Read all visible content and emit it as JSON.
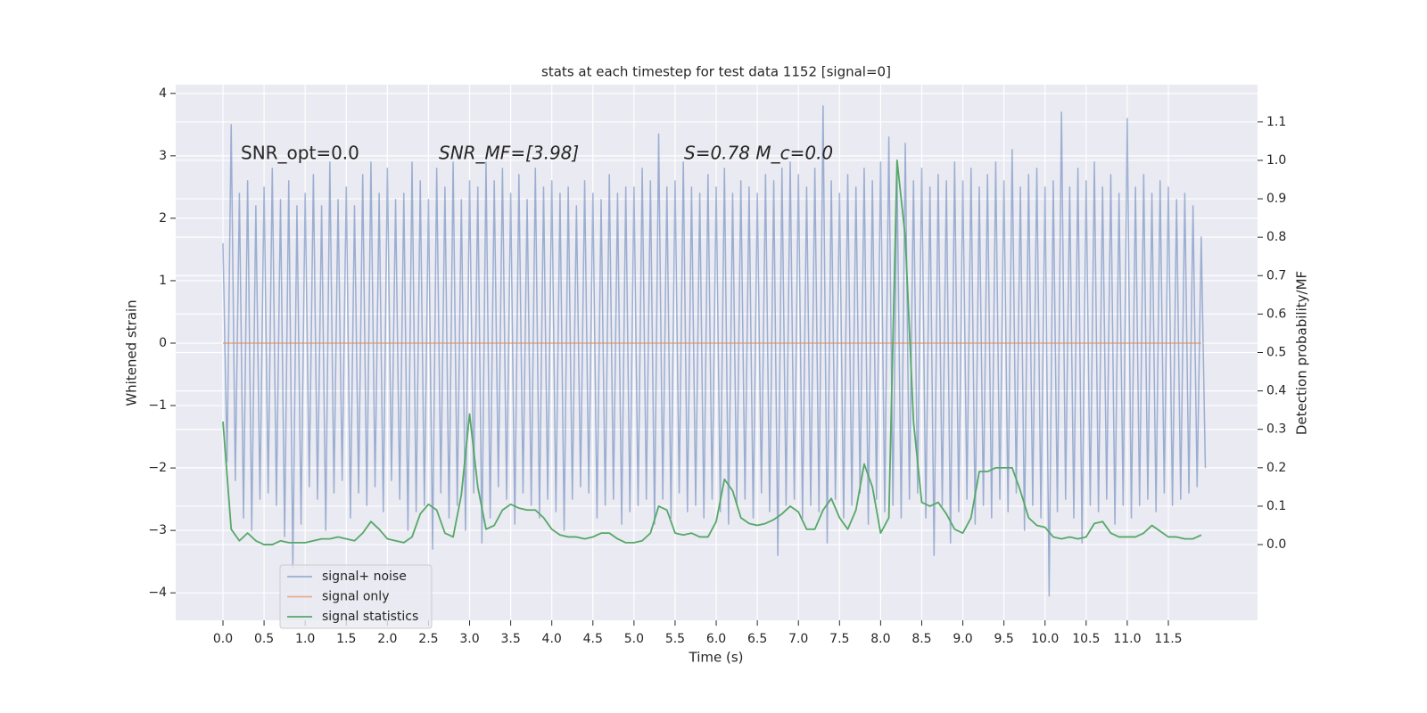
{
  "chart_data": {
    "type": "line",
    "title": "stats at each timestep for test data 1152 [signal=0]",
    "xlabel": "Time (s)",
    "ylabel": "Whitened strain",
    "y2label": "Detection probability/MF",
    "annotations": [
      "SNR_opt=0.0",
      "SNR_MF=[3.98]",
      "S=0.78   M_c=0.0"
    ],
    "grid": true,
    "legend": "lower left",
    "xlim": [
      -0.575,
      12.585
    ],
    "ylim": [
      -4.44,
      4.14
    ],
    "y2lim": [
      -0.197,
      1.197
    ],
    "xticks": [
      {
        "value": 0,
        "label": "0.0"
      },
      0.5,
      {
        "value": 1,
        "label": "1.0"
      },
      1.5,
      {
        "value": 2,
        "label": "2.0"
      },
      2.5,
      {
        "value": 3,
        "label": "3.0"
      },
      3.5,
      {
        "value": 4,
        "label": "4.0"
      },
      4.5,
      {
        "value": 5,
        "label": "5.0"
      },
      5.5,
      {
        "value": 6,
        "label": "6.0"
      },
      6.5,
      {
        "value": 7,
        "label": "7.0"
      },
      7.5,
      {
        "value": 8,
        "label": "8.0"
      },
      8.5,
      {
        "value": 9,
        "label": "9.0"
      },
      9.5,
      {
        "value": 10,
        "label": "10.0"
      },
      10.5,
      {
        "value": 11,
        "label": "11.0"
      },
      11.5
    ],
    "yticks": [
      {
        "value": -4,
        "label": "−4"
      },
      {
        "value": -3,
        "label": "−3"
      },
      {
        "value": -2,
        "label": "−2"
      },
      {
        "value": -1,
        "label": "−1"
      },
      0,
      1,
      2,
      3,
      4
    ],
    "y2ticks": [
      {
        "value": 0,
        "label": "0.0"
      },
      0.1,
      0.2,
      0.3,
      0.4,
      0.5,
      0.6,
      0.7,
      0.8,
      0.9,
      {
        "value": 1,
        "label": "1.0"
      },
      1.1
    ],
    "x": [
      0,
      0.1,
      0.2,
      0.3,
      0.4,
      0.5,
      0.6,
      0.7,
      0.8,
      0.9,
      1,
      1.1,
      1.2,
      1.3,
      1.4,
      1.5,
      1.6,
      1.7,
      1.8,
      1.9,
      2,
      2.1,
      2.2,
      2.3,
      2.4,
      2.5,
      2.6,
      2.7,
      2.8,
      2.9,
      3,
      3.1,
      3.2,
      3.3,
      3.4,
      3.5,
      3.6,
      3.7,
      3.8,
      3.9,
      4,
      4.1,
      4.2,
      4.3,
      4.4,
      4.5,
      4.6,
      4.7,
      4.8,
      4.9,
      5,
      5.1,
      5.2,
      5.3,
      5.4,
      5.5,
      5.6,
      5.7,
      5.8,
      5.9,
      6,
      6.1,
      6.2,
      6.3,
      6.4,
      6.5,
      6.6,
      6.7,
      6.8,
      6.9,
      7,
      7.1,
      7.2,
      7.3,
      7.4,
      7.5,
      7.6,
      7.7,
      7.8,
      7.9,
      8,
      8.1,
      8.2,
      8.3,
      8.4,
      8.5,
      8.6,
      8.7,
      8.8,
      8.9,
      9,
      9.1,
      9.2,
      9.3,
      9.4,
      9.5,
      9.6,
      9.7,
      9.8,
      9.9,
      10,
      10.1,
      10.2,
      10.3,
      10.4,
      10.5,
      10.6,
      10.7,
      10.8,
      10.9,
      11,
      11.1,
      11.2,
      11.3,
      11.4,
      11.5,
      11.6,
      11.7,
      11.8,
      11.9
    ],
    "series": [
      {
        "name": "signal+ noise",
        "color": "#4c72b0",
        "x": [
          0,
          0.05,
          0.1,
          0.15,
          0.2,
          0.25,
          0.3,
          0.35,
          0.4,
          0.45,
          0.5,
          0.55,
          0.6,
          0.65,
          0.7,
          0.75,
          0.8,
          0.85,
          0.9,
          0.95,
          1,
          1.05,
          1.1,
          1.15,
          1.2,
          1.25,
          1.3,
          1.35,
          1.4,
          1.45,
          1.5,
          1.55,
          1.6,
          1.65,
          1.7,
          1.75,
          1.8,
          1.85,
          1.9,
          1.95,
          2,
          2.05,
          2.1,
          2.15,
          2.2,
          2.25,
          2.3,
          2.35,
          2.4,
          2.45,
          2.5,
          2.55,
          2.6,
          2.65,
          2.7,
          2.75,
          2.8,
          2.85,
          2.9,
          2.95,
          3,
          3.05,
          3.1,
          3.15,
          3.2,
          3.25,
          3.3,
          3.35,
          3.4,
          3.45,
          3.5,
          3.55,
          3.6,
          3.65,
          3.7,
          3.75,
          3.8,
          3.85,
          3.9,
          3.95,
          4,
          4.05,
          4.1,
          4.15,
          4.2,
          4.25,
          4.3,
          4.35,
          4.4,
          4.45,
          4.5,
          4.55,
          4.6,
          4.65,
          4.7,
          4.75,
          4.8,
          4.85,
          4.9,
          4.95,
          5,
          5.05,
          5.1,
          5.15,
          5.2,
          5.25,
          5.3,
          5.35,
          5.4,
          5.45,
          5.5,
          5.55,
          5.6,
          5.65,
          5.7,
          5.75,
          5.8,
          5.85,
          5.9,
          5.95,
          6,
          6.05,
          6.1,
          6.15,
          6.2,
          6.25,
          6.3,
          6.35,
          6.4,
          6.45,
          6.5,
          6.55,
          6.6,
          6.65,
          6.7,
          6.75,
          6.8,
          6.85,
          6.9,
          6.95,
          7,
          7.05,
          7.1,
          7.15,
          7.2,
          7.25,
          7.3,
          7.35,
          7.4,
          7.45,
          7.5,
          7.55,
          7.6,
          7.65,
          7.7,
          7.75,
          7.8,
          7.85,
          7.9,
          7.95,
          8,
          8.05,
          8.1,
          8.15,
          8.2,
          8.25,
          8.3,
          8.35,
          8.4,
          8.45,
          8.5,
          8.55,
          8.6,
          8.65,
          8.7,
          8.75,
          8.8,
          8.85,
          8.9,
          8.95,
          9,
          9.05,
          9.1,
          9.15,
          9.2,
          9.25,
          9.3,
          9.35,
          9.4,
          9.45,
          9.5,
          9.55,
          9.6,
          9.65,
          9.7,
          9.75,
          9.8,
          9.85,
          9.9,
          9.95,
          10,
          10.05,
          10.1,
          10.15,
          10.2,
          10.25,
          10.3,
          10.35,
          10.4,
          10.45,
          10.5,
          10.55,
          10.6,
          10.65,
          10.7,
          10.75,
          10.8,
          10.85,
          10.9,
          10.95,
          11,
          11.05,
          11.1,
          11.15,
          11.2,
          11.25,
          11.3,
          11.35,
          11.4,
          11.45,
          11.5,
          11.55,
          11.6,
          11.65,
          11.7,
          11.75,
          11.8,
          11.85,
          11.9,
          11.95
        ],
        "values": [
          1.6,
          -1.9,
          3.5,
          -2.2,
          2.4,
          -2.8,
          2.6,
          -3.0,
          2.2,
          -2.5,
          2.5,
          -2.4,
          2.8,
          -2.6,
          2.3,
          -3.1,
          2.6,
          -3.6,
          2.2,
          -2.9,
          2.4,
          -2.3,
          2.7,
          -2.5,
          2.2,
          -3.0,
          2.9,
          -2.4,
          2.3,
          -2.2,
          2.5,
          -2.8,
          2.2,
          -2.4,
          2.7,
          -2.6,
          2.9,
          -2.3,
          2.4,
          -2.7,
          2.8,
          -2.2,
          2.3,
          -2.5,
          2.4,
          -3.0,
          2.9,
          -2.7,
          2.6,
          -2.6,
          2.3,
          -3.3,
          2.8,
          -2.4,
          2.5,
          -2.8,
          2.9,
          -2.6,
          2.3,
          -3.0,
          2.6,
          -2.4,
          2.5,
          -3.2,
          2.9,
          -2.8,
          2.6,
          -2.3,
          2.8,
          -2.5,
          2.4,
          -2.9,
          2.7,
          -2.4,
          2.3,
          -2.6,
          2.8,
          -2.8,
          2.5,
          -2.5,
          2.6,
          -2.7,
          2.4,
          -3.0,
          2.5,
          -2.5,
          2.2,
          -2.3,
          2.6,
          -2.4,
          2.4,
          -2.8,
          2.3,
          -2.6,
          2.7,
          -2.5,
          2.4,
          -2.9,
          2.5,
          -2.7,
          2.5,
          -2.6,
          2.8,
          -2.5,
          2.6,
          -2.9,
          3.35,
          -2.5,
          2.5,
          -2.8,
          2.6,
          -2.4,
          2.9,
          -2.7,
          2.5,
          -2.6,
          2.4,
          -2.8,
          2.7,
          -2.5,
          2.5,
          -2.7,
          2.8,
          -2.9,
          2.4,
          -2.6,
          2.6,
          -2.5,
          2.5,
          -2.8,
          2.4,
          -2.4,
          2.7,
          -2.7,
          2.6,
          -3.4,
          2.8,
          -2.6,
          2.9,
          -2.5,
          2.7,
          -2.8,
          2.5,
          -2.6,
          2.8,
          -2.7,
          3.8,
          -3.2,
          2.6,
          -2.5,
          2.4,
          -2.8,
          2.7,
          -2.6,
          2.5,
          -2.4,
          2.8,
          -2.9,
          2.6,
          -2.5,
          2.9,
          -2.7,
          3.3,
          -2.6,
          2.7,
          -2.8,
          3.2,
          -2.5,
          2.6,
          -2.4,
          2.8,
          -2.8,
          2.5,
          -3.4,
          2.7,
          -2.6,
          2.6,
          -3.2,
          2.9,
          -2.7,
          2.6,
          -2.5,
          2.8,
          -2.9,
          2.5,
          -2.6,
          2.7,
          -2.8,
          2.9,
          -2.5,
          2.6,
          -2.7,
          3.1,
          -2.4,
          2.5,
          -3.0,
          2.7,
          -2.6,
          2.8,
          -2.8,
          2.5,
          -4.05,
          2.6,
          -2.7,
          3.7,
          -2.5,
          2.5,
          -2.8,
          2.8,
          -3.2,
          2.6,
          -2.6,
          2.9,
          -2.7,
          2.5,
          -2.5,
          2.7,
          -2.9,
          2.4,
          -2.6,
          3.6,
          -2.8,
          2.5,
          -2.6,
          2.7,
          -2.5,
          2.4,
          -2.7,
          2.6,
          -2.4,
          2.5,
          -2.6,
          2.3,
          -2.5,
          2.4,
          -2.4,
          2.2,
          -2.3,
          1.7,
          -2.0
        ]
      },
      {
        "name": "signal only",
        "color": "#dd8452",
        "values": [
          0,
          0,
          0,
          0,
          0,
          0,
          0,
          0,
          0,
          0,
          0,
          0,
          0,
          0,
          0,
          0,
          0,
          0,
          0,
          0,
          0,
          0,
          0,
          0,
          0,
          0,
          0,
          0,
          0,
          0,
          0,
          0,
          0,
          0,
          0,
          0,
          0,
          0,
          0,
          0,
          0,
          0,
          0,
          0,
          0,
          0,
          0,
          0,
          0,
          0,
          0,
          0,
          0,
          0,
          0,
          0,
          0,
          0,
          0,
          0,
          0,
          0,
          0,
          0,
          0,
          0,
          0,
          0,
          0,
          0,
          0,
          0,
          0,
          0,
          0,
          0,
          0,
          0,
          0,
          0,
          0,
          0,
          0,
          0,
          0,
          0,
          0,
          0,
          0,
          0,
          0,
          0,
          0,
          0,
          0,
          0,
          0,
          0,
          0,
          0,
          0,
          0,
          0,
          0,
          0,
          0,
          0,
          0,
          0,
          0,
          0,
          0,
          0,
          0,
          0,
          0,
          0,
          0,
          0,
          0
        ]
      },
      {
        "name": "signal statistics",
        "color": "#55a868",
        "axis": "y2",
        "values": [
          0.32,
          0.04,
          0.01,
          0.03,
          0.01,
          0.0,
          0.0,
          0.01,
          0.005,
          0.005,
          0.005,
          0.01,
          0.015,
          0.015,
          0.02,
          0.015,
          0.01,
          0.03,
          0.06,
          0.04,
          0.015,
          0.01,
          0.005,
          0.02,
          0.08,
          0.105,
          0.09,
          0.03,
          0.02,
          0.13,
          0.34,
          0.15,
          0.04,
          0.05,
          0.09,
          0.105,
          0.095,
          0.09,
          0.09,
          0.07,
          0.04,
          0.025,
          0.02,
          0.02,
          0.015,
          0.02,
          0.03,
          0.03,
          0.015,
          0.005,
          0.005,
          0.01,
          0.03,
          0.1,
          0.09,
          0.03,
          0.025,
          0.03,
          0.02,
          0.02,
          0.06,
          0.17,
          0.14,
          0.07,
          0.055,
          0.05,
          0.055,
          0.065,
          0.08,
          0.1,
          0.085,
          0.04,
          0.04,
          0.09,
          0.12,
          0.07,
          0.04,
          0.09,
          0.21,
          0.15,
          0.03,
          0.07,
          1.0,
          0.8,
          0.32,
          0.11,
          0.1,
          0.11,
          0.08,
          0.04,
          0.03,
          0.07,
          0.19,
          0.19,
          0.2,
          0.2,
          0.2,
          0.14,
          0.07,
          0.05,
          0.045,
          0.02,
          0.015,
          0.02,
          0.015,
          0.02,
          0.055,
          0.06,
          0.03,
          0.02,
          0.02,
          0.02,
          0.03,
          0.05,
          0.035,
          0.02,
          0.02,
          0.015,
          0.015,
          0.025
        ]
      }
    ]
  }
}
